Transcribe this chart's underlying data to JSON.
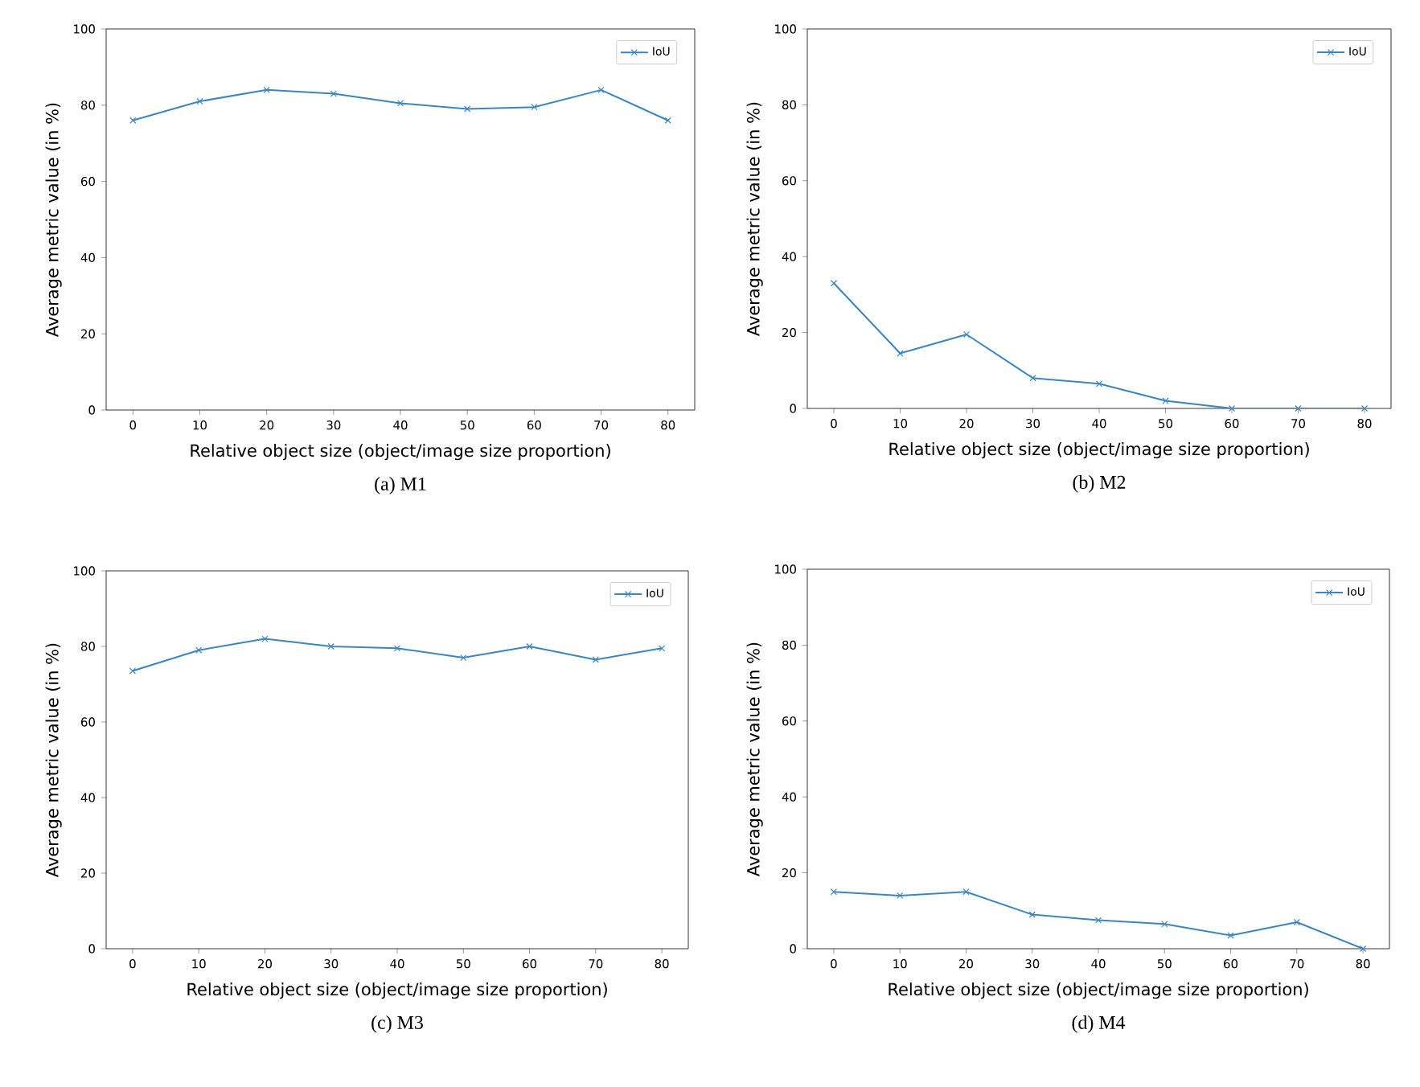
{
  "chart_data": [
    {
      "type": "line",
      "title": "(a)  M1",
      "xlabel": "Relative object size (object/image size proportion)",
      "ylabel": "Average metric value (in %)",
      "x": [
        0,
        10,
        20,
        30,
        40,
        50,
        60,
        70,
        80
      ],
      "series": [
        {
          "name": "IoU",
          "color": "#3b86c0",
          "values": [
            76,
            81,
            84,
            83,
            80.5,
            79,
            79.5,
            84,
            76
          ]
        }
      ],
      "xlim": [
        -4,
        84
      ],
      "xticks": [
        0,
        10,
        20,
        30,
        40,
        50,
        60,
        70,
        80
      ],
      "ylim": [
        0,
        100
      ],
      "yticks": [
        0,
        20,
        40,
        60,
        80,
        100
      ],
      "legend": "top right",
      "marker": "cross",
      "line_style": "solid",
      "grid": false
    },
    {
      "type": "line",
      "title": "(b)  M2",
      "xlabel": "Relative object size (object/image size proportion)",
      "ylabel": "Average metric value (in %)",
      "x": [
        0,
        10,
        20,
        30,
        40,
        50,
        60,
        70,
        80
      ],
      "series": [
        {
          "name": "IoU",
          "color": "#3b86c0",
          "values": [
            33,
            14.5,
            19.5,
            8,
            6.5,
            2,
            0,
            0,
            0
          ]
        }
      ],
      "xlim": [
        -4,
        84
      ],
      "xticks": [
        0,
        10,
        20,
        30,
        40,
        50,
        60,
        70,
        80
      ],
      "ylim": [
        0,
        100
      ],
      "yticks": [
        0,
        20,
        40,
        60,
        80,
        100
      ],
      "legend": "top right",
      "marker": "cross",
      "line_style": "solid",
      "grid": false
    },
    {
      "type": "line",
      "title": "(c)  M3",
      "xlabel": "Relative object size (object/image size proportion)",
      "ylabel": "Average metric value (in %)",
      "x": [
        0,
        10,
        20,
        30,
        40,
        50,
        60,
        70,
        80
      ],
      "series": [
        {
          "name": "IoU",
          "color": "#3b86c0",
          "values": [
            73.5,
            79,
            82,
            80,
            79.5,
            77,
            80,
            76.5,
            79.5
          ]
        }
      ],
      "xlim": [
        -4,
        84
      ],
      "xticks": [
        0,
        10,
        20,
        30,
        40,
        50,
        60,
        70,
        80
      ],
      "ylim": [
        0,
        100
      ],
      "yticks": [
        0,
        20,
        40,
        60,
        80,
        100
      ],
      "legend": "top right",
      "marker": "cross",
      "line_style": "solid",
      "grid": false
    },
    {
      "type": "line",
      "title": "(d)  M4",
      "xlabel": "Relative object size (object/image size proportion)",
      "ylabel": "Average metric value (in %)",
      "x": [
        0,
        10,
        20,
        30,
        40,
        50,
        60,
        70,
        80
      ],
      "series": [
        {
          "name": "IoU",
          "color": "#3b86c0",
          "values": [
            15,
            14,
            15,
            9,
            7.5,
            6.5,
            3.5,
            7,
            0
          ]
        }
      ],
      "xlim": [
        -4,
        84
      ],
      "xticks": [
        0,
        10,
        20,
        30,
        40,
        50,
        60,
        70,
        80
      ],
      "ylim": [
        0,
        100
      ],
      "yticks": [
        0,
        20,
        40,
        60,
        80,
        100
      ],
      "legend": "top right",
      "marker": "cross",
      "line_style": "solid",
      "grid": false
    }
  ]
}
